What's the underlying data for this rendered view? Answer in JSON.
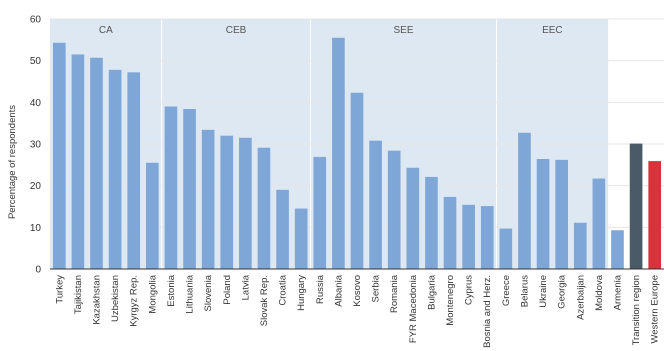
{
  "chart_data": {
    "type": "bar",
    "ylabel": "Percentage of respondents",
    "xlabel": "",
    "ylim": [
      0,
      60
    ],
    "yticks": [
      0,
      10,
      20,
      30,
      40,
      50,
      60
    ],
    "grid": true,
    "colors": {
      "default": "#7ea7d8",
      "transition": "#4a5a66",
      "western": "#d8323a",
      "band": "#dde8f3"
    },
    "groups": [
      {
        "label": "CA",
        "start": 0,
        "end": 5
      },
      {
        "label": "CEB",
        "start": 6,
        "end": 13
      },
      {
        "label": "SEE",
        "start": 14,
        "end": 23
      },
      {
        "label": "EEC",
        "start": 24,
        "end": 29
      }
    ],
    "categories": [
      "Turkey",
      "Tajikistan",
      "Kazakhstan",
      "Uzbekistan",
      "Kyrgyz Rep.",
      "Mongolia",
      "Estonia",
      "Lithuania",
      "Slovenia",
      "Poland",
      "Latvia",
      "Slovak Rep.",
      "Croatia",
      "Hungary",
      "Russia",
      "Albania",
      "Kosovo",
      "Serbia",
      "Romania",
      "FYR Macedonia",
      "Bulgaria",
      "Montenegro",
      "Cyprus",
      "Bosnia and Herz.",
      "Greece",
      "Belarus",
      "Ukraine",
      "Georgia",
      "Azerbaijan",
      "Moldova",
      "Armenia",
      "Transition region",
      "Western Europe"
    ],
    "values": [
      54.3,
      51.5,
      50.7,
      47.8,
      47.2,
      25.5,
      39.0,
      38.4,
      33.4,
      32.0,
      31.5,
      29.1,
      19.0,
      14.5,
      26.9,
      55.5,
      42.3,
      30.8,
      28.4,
      24.3,
      22.1,
      17.3,
      15.4,
      15.1,
      9.7,
      32.7,
      26.4,
      26.2,
      11.1,
      21.7,
      9.3,
      30.1,
      25.9
    ],
    "bar_colors": [
      "default",
      "default",
      "default",
      "default",
      "default",
      "default",
      "default",
      "default",
      "default",
      "default",
      "default",
      "default",
      "default",
      "default",
      "default",
      "default",
      "default",
      "default",
      "default",
      "default",
      "default",
      "default",
      "default",
      "default",
      "default",
      "default",
      "default",
      "default",
      "default",
      "default",
      "default",
      "transition",
      "western"
    ]
  }
}
